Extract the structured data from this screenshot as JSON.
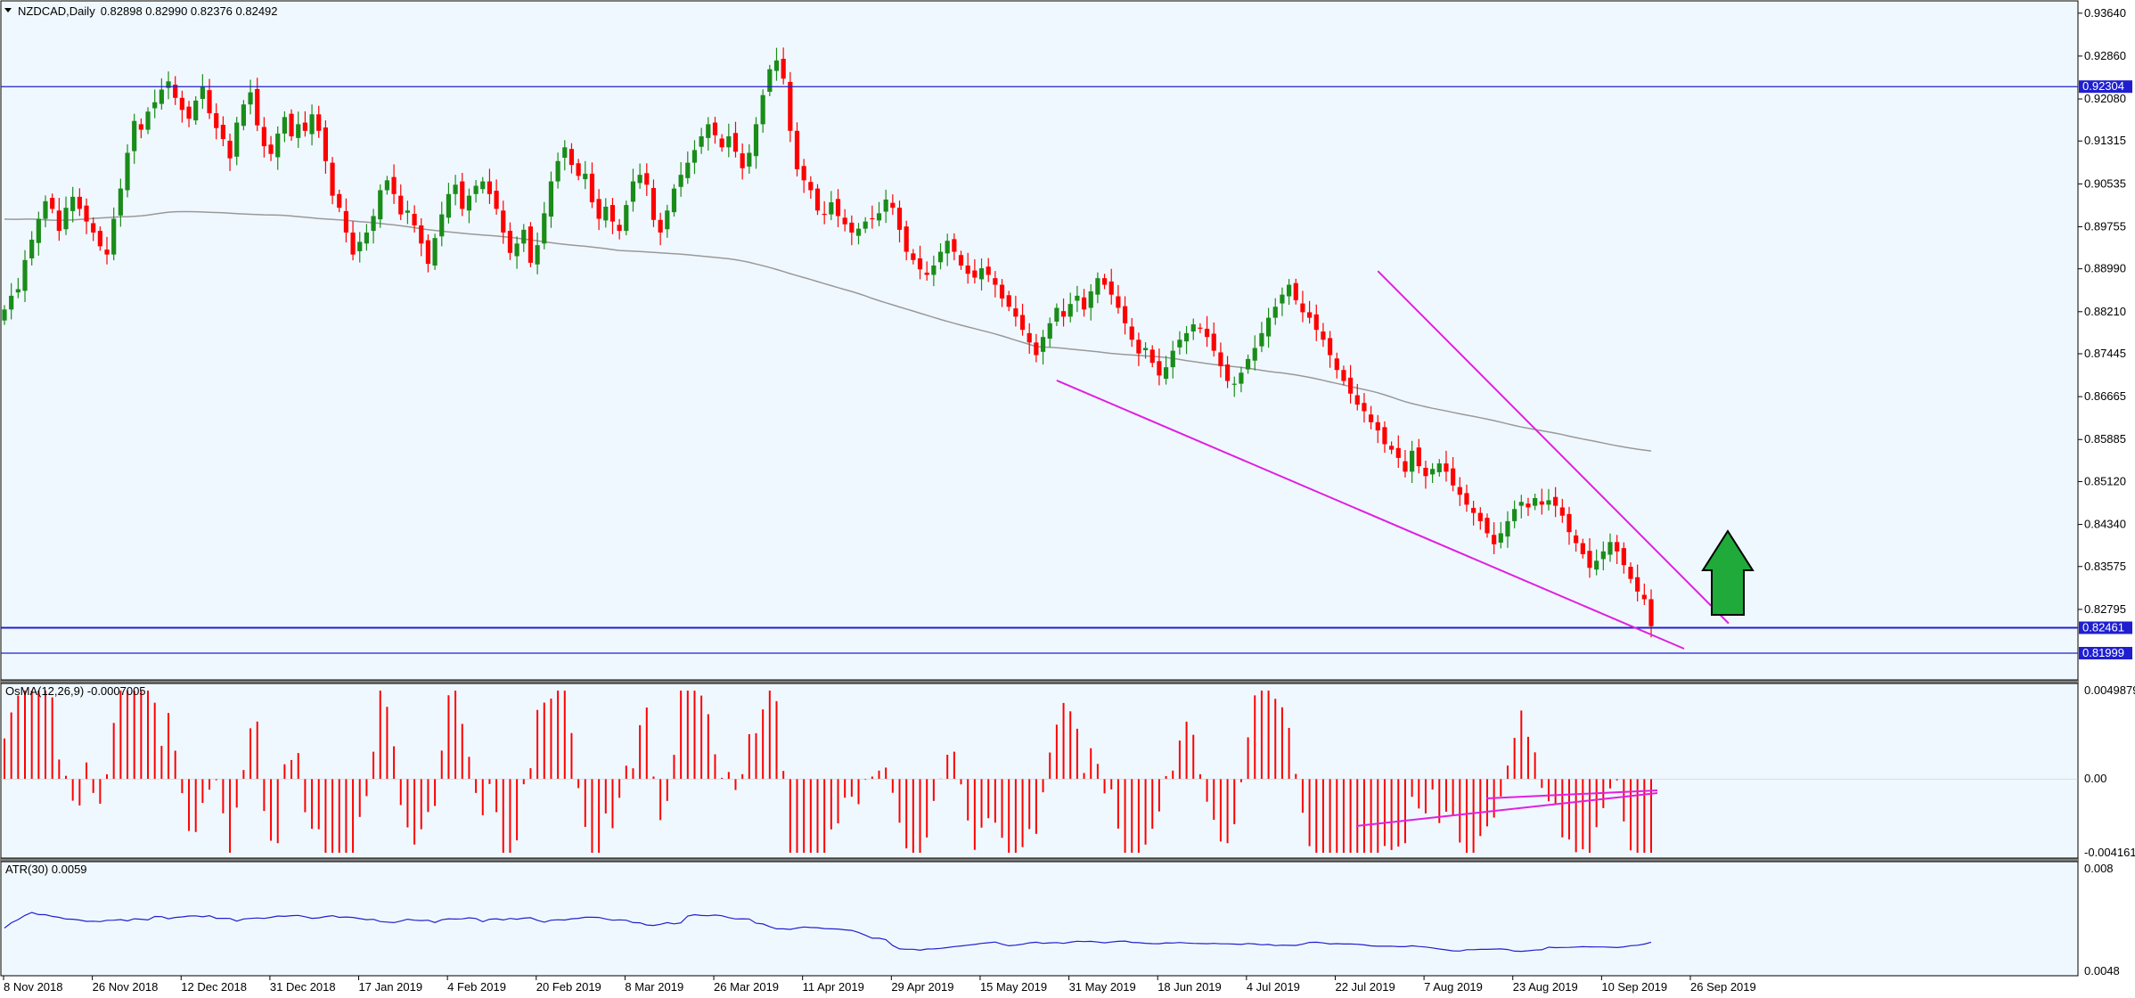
{
  "chart_data": [
    {
      "type": "candlestick",
      "symbol": "NZDCAD",
      "timeframe": "Daily",
      "title_values": "0.82898 0.82990 0.82376 0.82492",
      "y_ticks": [
        "0.93640",
        "0.92860",
        "0.92080",
        "0.91315",
        "0.90535",
        "0.89755",
        "0.88990",
        "0.88210",
        "0.87445",
        "0.86665",
        "0.85885",
        "0.85120",
        "0.84340",
        "0.83575",
        "0.82795"
      ],
      "ylim": [
        0.8161,
        0.9375
      ],
      "x_ticks": [
        "8 Nov 2018",
        "26 Nov 2018",
        "12 Dec 2018",
        "31 Dec 2018",
        "17 Jan 2019",
        "4 Feb 2019",
        "20 Feb 2019",
        "8 Mar 2019",
        "26 Mar 2019",
        "11 Apr 2019",
        "29 Apr 2019",
        "15 May 2019",
        "31 May 2019",
        "18 Jun 2019",
        "4 Jul 2019",
        "22 Jul 2019",
        "7 Aug 2019",
        "23 Aug 2019",
        "10 Sep 2019",
        "26 Sep 2019"
      ],
      "horizontal_levels": [
        {
          "label": "0.92304",
          "value": 0.92304,
          "color": "#1f1fd0"
        },
        {
          "label": "0.82461",
          "value": 0.82461,
          "color": "#1f1fd0"
        },
        {
          "label": "0.81999",
          "value": 0.81999,
          "color": "#1f1fd0"
        }
      ],
      "closes": [
        0.8825,
        0.885,
        0.8862,
        0.8915,
        0.8952,
        0.899,
        0.9022,
        0.9008,
        0.8968,
        0.901,
        0.903,
        0.9008,
        0.8985,
        0.8965,
        0.894,
        0.8925,
        0.899,
        0.9045,
        0.911,
        0.9168,
        0.9152,
        0.9185,
        0.9202,
        0.9225,
        0.924,
        0.921,
        0.9188,
        0.9172,
        0.9205,
        0.923,
        0.9182,
        0.9155,
        0.9135,
        0.91,
        0.9165,
        0.9198,
        0.922,
        0.916,
        0.9122,
        0.9108,
        0.9145,
        0.9175,
        0.914,
        0.9162,
        0.915,
        0.918,
        0.915,
        0.9095,
        0.9032,
        0.901,
        0.8965,
        0.8925,
        0.8948,
        0.8965,
        0.8995,
        0.9042,
        0.906,
        0.9035,
        0.8998,
        0.9005,
        0.8978,
        0.8945,
        0.8908,
        0.8955,
        0.8998,
        0.9035,
        0.9052,
        0.9008,
        0.9032,
        0.905,
        0.9058,
        0.9035,
        0.9008,
        0.8965,
        0.8928,
        0.8945,
        0.897,
        0.891,
        0.8942,
        0.9,
        0.9058,
        0.9095,
        0.912,
        0.9088,
        0.9068,
        0.9072,
        0.902,
        0.899,
        0.9012,
        0.8985,
        0.8968,
        0.9015,
        0.9058,
        0.907,
        0.9052,
        0.8988,
        0.8965,
        0.9005,
        0.9045,
        0.907,
        0.9092,
        0.9115,
        0.914,
        0.9162,
        0.9142,
        0.912,
        0.914,
        0.9112,
        0.9082,
        0.911,
        0.9162,
        0.9215,
        0.9262,
        0.9278,
        0.9245,
        0.915,
        0.908,
        0.906,
        0.9042,
        0.9005,
        0.8998,
        0.902,
        0.8995,
        0.898,
        0.8965,
        0.8972,
        0.8985,
        0.899,
        0.9,
        0.9025,
        0.901,
        0.897,
        0.893,
        0.8915,
        0.8898,
        0.8888,
        0.8905,
        0.893,
        0.895,
        0.893,
        0.8905,
        0.889,
        0.8883,
        0.89,
        0.8888,
        0.887,
        0.8845,
        0.883,
        0.8812,
        0.8788,
        0.8765,
        0.8742,
        0.8775,
        0.88,
        0.8828,
        0.8812,
        0.8835,
        0.885,
        0.8825,
        0.8858,
        0.8882,
        0.887,
        0.8852,
        0.8828,
        0.88,
        0.877,
        0.8745,
        0.8755,
        0.8728,
        0.8705,
        0.872,
        0.875,
        0.877,
        0.8782,
        0.8798,
        0.879,
        0.8775,
        0.875,
        0.8722,
        0.8695,
        0.869,
        0.871,
        0.8735,
        0.8755,
        0.8782,
        0.881,
        0.883,
        0.8852,
        0.887,
        0.8842,
        0.882,
        0.881,
        0.8788,
        0.877,
        0.8742,
        0.8715,
        0.8695,
        0.8672,
        0.8652,
        0.864,
        0.862,
        0.8605,
        0.858,
        0.857,
        0.8555,
        0.853,
        0.8568,
        0.854,
        0.8522,
        0.8535,
        0.8545,
        0.853,
        0.8505,
        0.8488,
        0.847,
        0.8455,
        0.844,
        0.8418,
        0.8398,
        0.8418,
        0.844,
        0.8462,
        0.8475,
        0.8465,
        0.8482,
        0.847,
        0.8478,
        0.8468,
        0.845,
        0.842,
        0.84,
        0.838,
        0.8355,
        0.8368,
        0.8385,
        0.8402,
        0.8385,
        0.836,
        0.8335,
        0.8312,
        0.8298,
        0.8249
      ],
      "sma_label": "moving average (grey)"
    },
    {
      "type": "bar",
      "indicator": "OsMA(12,26,9) -0.0007005",
      "y_ticks": [
        "0.0049879",
        "0.00",
        "-0.0041618"
      ],
      "ylim": [
        -0.0041618,
        0.0049879
      ],
      "positive_color": "#ff0000",
      "negative_color": "#ff0000"
    },
    {
      "type": "line",
      "indicator": "ATR(30) 0.0059",
      "y_ticks": [
        "0.008",
        "0.0048"
      ],
      "ylim": [
        0.0048,
        0.008
      ],
      "color": "#1f1fd0"
    }
  ],
  "colors": {
    "background": "#f0f8ff",
    "bull": "#1a8c1a",
    "bear": "#ff0000",
    "trendline": "#e020e0",
    "level_line": "#1f1fd0",
    "arrow": "#1faa3a"
  },
  "icons": [
    "green-up-arrow-icon",
    "collapse-triangle-icon"
  ]
}
